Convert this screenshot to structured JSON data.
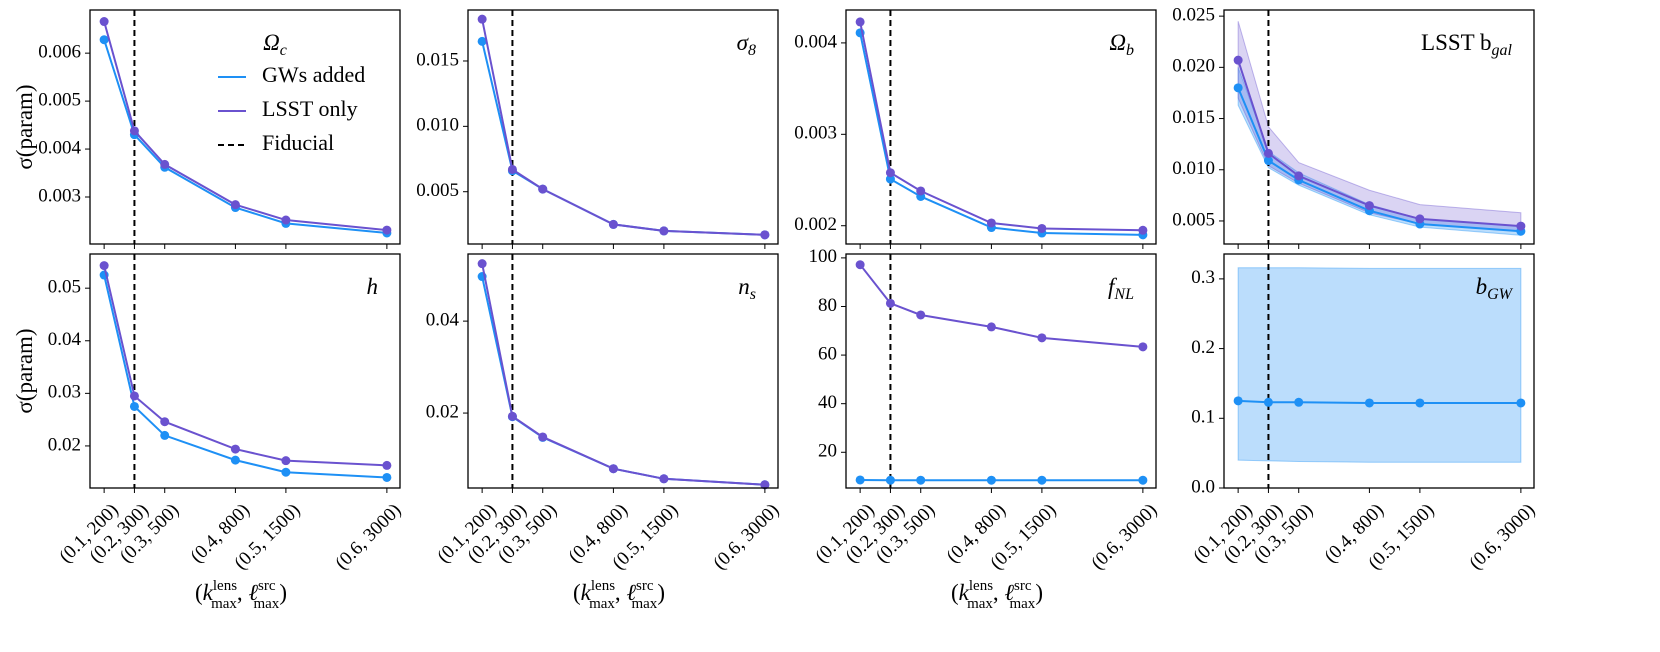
{
  "chart_data": [
    {
      "type": "line",
      "title": "Ω",
      "title_sub": "c",
      "ylabel": "σ(param)",
      "legend": true,
      "x": [
        0,
        0.3,
        0.6,
        1.3,
        1.8,
        2.8
      ],
      "xlim": [
        -0.14,
        2.93
      ],
      "xticks": [
        0,
        0.3,
        0.6,
        1.3,
        1.8,
        2.8
      ],
      "ylim": [
        0.00202,
        0.0069
      ],
      "yticks": [
        0.003,
        0.004,
        0.005,
        0.006
      ],
      "fiducial": {
        "name": "Fiducial",
        "x": 0.3,
        "color": "#000000"
      },
      "series": [
        {
          "name": "GWs added",
          "color": "#1e90f5",
          "values": [
            0.00628,
            0.0043,
            0.00362,
            0.00278,
            0.00245,
            0.00225
          ]
        },
        {
          "name": "LSST only",
          "color": "#6a52cf",
          "values": [
            0.00666,
            0.00438,
            0.00368,
            0.00284,
            0.00252,
            0.00231
          ]
        }
      ]
    },
    {
      "type": "line",
      "title": "σ",
      "title_sub": "8",
      "x": [
        0,
        0.3,
        0.6,
        1.3,
        1.8,
        2.8
      ],
      "xlim": [
        -0.14,
        2.93
      ],
      "xticks": [
        0,
        0.3,
        0.6,
        1.3,
        1.8,
        2.8
      ],
      "ylim": [
        0.001,
        0.0189
      ],
      "yticks": [
        0.005,
        {
          "value": 0.01,
          "label": "0.010"
        },
        0.015
      ],
      "fiducial": {
        "x": 0.3,
        "color": "#000000"
      },
      "series": [
        {
          "color": "#1e90f5",
          "values": [
            0.0165,
            0.0066,
            0.0052,
            0.0025,
            0.002,
            0.0017
          ]
        },
        {
          "color": "#6a52cf",
          "values": [
            0.0182,
            0.0067,
            0.0052,
            0.0025,
            0.002,
            0.0017
          ]
        }
      ]
    },
    {
      "type": "line",
      "title": "Ω",
      "title_sub": "b",
      "x": [
        0,
        0.3,
        0.6,
        1.3,
        1.8,
        2.8
      ],
      "xlim": [
        -0.14,
        2.93
      ],
      "xticks": [
        0,
        0.3,
        0.6,
        1.3,
        1.8,
        2.8
      ],
      "ylim": [
        0.0018,
        0.00436
      ],
      "yticks": [
        0.002,
        0.003,
        0.004
      ],
      "fiducial": {
        "x": 0.3,
        "color": "#000000"
      },
      "series": [
        {
          "color": "#1e90f5",
          "values": [
            0.00411,
            0.00251,
            0.00232,
            0.00198,
            0.00192,
            0.0019
          ]
        },
        {
          "color": "#6a52cf",
          "values": [
            0.00423,
            0.00258,
            0.00238,
            0.00203,
            0.00197,
            0.00195
          ]
        }
      ]
    },
    {
      "type": "line",
      "title": "LSST b",
      "title_sub": "gal",
      "x": [
        0,
        0.3,
        0.6,
        1.3,
        1.8,
        2.8
      ],
      "xlim": [
        -0.14,
        2.93
      ],
      "xticks": [
        0,
        0.3,
        0.6,
        1.3,
        1.8,
        2.8
      ],
      "ylim": [
        0.00275,
        0.0256
      ],
      "yticks": [
        0.005,
        {
          "value": 0.01,
          "label": "0.010"
        },
        0.015,
        {
          "value": 0.02,
          "label": "0.020"
        },
        0.025
      ],
      "fiducial": {
        "x": 0.3,
        "color": "#000000"
      },
      "series": [
        {
          "color": "#1e90f5",
          "values": [
            0.018,
            0.0109,
            0.009,
            0.006,
            0.0047,
            0.004
          ],
          "band_low": [
            0.0163,
            0.0102,
            0.0085,
            0.0056,
            0.0044,
            0.0036
          ],
          "band_high": [
            0.02,
            0.0118,
            0.0097,
            0.0066,
            0.0052,
            0.0045
          ]
        },
        {
          "color": "#6a52cf",
          "values": [
            0.0207,
            0.0116,
            0.0094,
            0.0065,
            0.0052,
            0.0045
          ],
          "band_low": [
            0.017,
            0.0104,
            0.0087,
            0.0058,
            0.0047,
            0.004
          ],
          "band_high": [
            0.0245,
            0.0142,
            0.0107,
            0.008,
            0.0066,
            0.0058
          ]
        }
      ]
    },
    {
      "type": "line",
      "title": "h",
      "ylabel": "σ(param)",
      "xlabel": [
        "(",
        "k",
        "lens",
        "max",
        ", ",
        "ℓ",
        "src",
        "max",
        ")"
      ],
      "x": [
        0,
        0.3,
        0.6,
        1.3,
        1.8,
        2.8
      ],
      "xlim": [
        -0.14,
        2.93
      ],
      "xticks": [
        {
          "value": 0,
          "label": "(0.1, 200)"
        },
        {
          "value": 0.3,
          "label": "(0.2, 300)"
        },
        {
          "value": 0.6,
          "label": "(0.3, 500)"
        },
        {
          "value": 1.3,
          "label": "(0.4, 800)"
        },
        {
          "value": 1.8,
          "label": "(0.5, 1500)"
        },
        {
          "value": 2.8,
          "label": "(0.6, 3000)"
        }
      ],
      "ylim": [
        0.012,
        0.0565
      ],
      "yticks": [
        {
          "value": 0.02,
          "label": "0.02"
        },
        {
          "value": 0.03,
          "label": "0.03"
        },
        {
          "value": 0.04,
          "label": "0.04"
        },
        {
          "value": 0.05,
          "label": "0.05"
        }
      ],
      "fiducial": {
        "x": 0.3,
        "color": "#000000"
      },
      "series": [
        {
          "color": "#1e90f5",
          "values": [
            0.0525,
            0.0275,
            0.022,
            0.0173,
            0.015,
            0.014
          ]
        },
        {
          "color": "#6a52cf",
          "values": [
            0.0543,
            0.0295,
            0.0246,
            0.0194,
            0.0172,
            0.0163
          ]
        }
      ]
    },
    {
      "type": "line",
      "title": "n",
      "title_sub": "s",
      "xlabel": [
        "(",
        "k",
        "lens",
        "max",
        ", ",
        "ℓ",
        "src",
        "max",
        ")"
      ],
      "x": [
        0,
        0.3,
        0.6,
        1.3,
        1.8,
        2.8
      ],
      "xlim": [
        -0.14,
        2.93
      ],
      "xticks": [
        {
          "value": 0,
          "label": "(0.1, 200)"
        },
        {
          "value": 0.3,
          "label": "(0.2, 300)"
        },
        {
          "value": 0.6,
          "label": "(0.3, 500)"
        },
        {
          "value": 1.3,
          "label": "(0.4, 800)"
        },
        {
          "value": 1.8,
          "label": "(0.5, 1500)"
        },
        {
          "value": 2.8,
          "label": "(0.6, 3000)"
        }
      ],
      "ylim": [
        0.0037,
        0.0546
      ],
      "yticks": [
        0.02,
        0.04
      ],
      "fiducial": {
        "x": 0.3,
        "color": "#000000"
      },
      "series": [
        {
          "color": "#1e90f5",
          "values": [
            0.0497,
            0.0192,
            0.0147,
            0.0079,
            0.0057,
            0.0044
          ]
        },
        {
          "color": "#6a52cf",
          "values": [
            0.0525,
            0.0193,
            0.0148,
            0.0079,
            0.0057,
            0.0044
          ]
        }
      ]
    },
    {
      "type": "line",
      "title": "f",
      "title_sub": "NL",
      "xlabel": [
        "(",
        "k",
        "lens",
        "max",
        ", ",
        "ℓ",
        "src",
        "max",
        ")"
      ],
      "x": [
        0,
        0.3,
        0.6,
        1.3,
        1.8,
        2.8
      ],
      "xlim": [
        -0.14,
        2.93
      ],
      "xticks": [
        {
          "value": 0,
          "label": "(0.1, 200)"
        },
        {
          "value": 0.3,
          "label": "(0.2, 300)"
        },
        {
          "value": 0.6,
          "label": "(0.3, 500)"
        },
        {
          "value": 1.3,
          "label": "(0.4, 800)"
        },
        {
          "value": 1.8,
          "label": "(0.5, 1500)"
        },
        {
          "value": 2.8,
          "label": "(0.6, 3000)"
        }
      ],
      "ylim": [
        5.3,
        101.6
      ],
      "yticks": [
        20,
        40,
        60,
        80,
        100
      ],
      "fiducial": {
        "x": 0.3,
        "color": "#000000"
      },
      "series": [
        {
          "color": "#1e90f5",
          "values": [
            8.6,
            8.5,
            8.5,
            8.5,
            8.5,
            8.5
          ]
        },
        {
          "color": "#6a52cf",
          "values": [
            97.2,
            81.3,
            76.5,
            71.6,
            67.1,
            63.4
          ]
        }
      ]
    },
    {
      "type": "line",
      "title": "b",
      "title_sub": "GW",
      "x": [
        0,
        0.3,
        0.6,
        1.3,
        1.8,
        2.8
      ],
      "xlim": [
        -0.14,
        2.93
      ],
      "xticks": [
        {
          "value": 0,
          "label": "(0.1, 200)"
        },
        {
          "value": 0.3,
          "label": "(0.2, 300)"
        },
        {
          "value": 0.6,
          "label": "(0.3, 500)"
        },
        {
          "value": 1.3,
          "label": "(0.4, 800)"
        },
        {
          "value": 1.8,
          "label": "(0.5, 1500)"
        },
        {
          "value": 2.8,
          "label": "(0.6, 3000)"
        }
      ],
      "ylim": [
        0,
        0.3357
      ],
      "yticks": [
        {
          "value": 0,
          "label": "0.0"
        },
        0.1,
        0.2,
        0.3
      ],
      "fiducial": {
        "x": 0.3,
        "color": "#000000"
      },
      "series": [
        {
          "color": "#1e90f5",
          "values": [
            0.125,
            0.123,
            0.123,
            0.122,
            0.122,
            0.122
          ],
          "band_low": [
            0.04,
            0.039,
            0.038,
            0.037,
            0.037,
            0.037
          ],
          "band_high": [
            0.316,
            0.316,
            0.316,
            0.315,
            0.315,
            0.315
          ]
        }
      ]
    }
  ]
}
